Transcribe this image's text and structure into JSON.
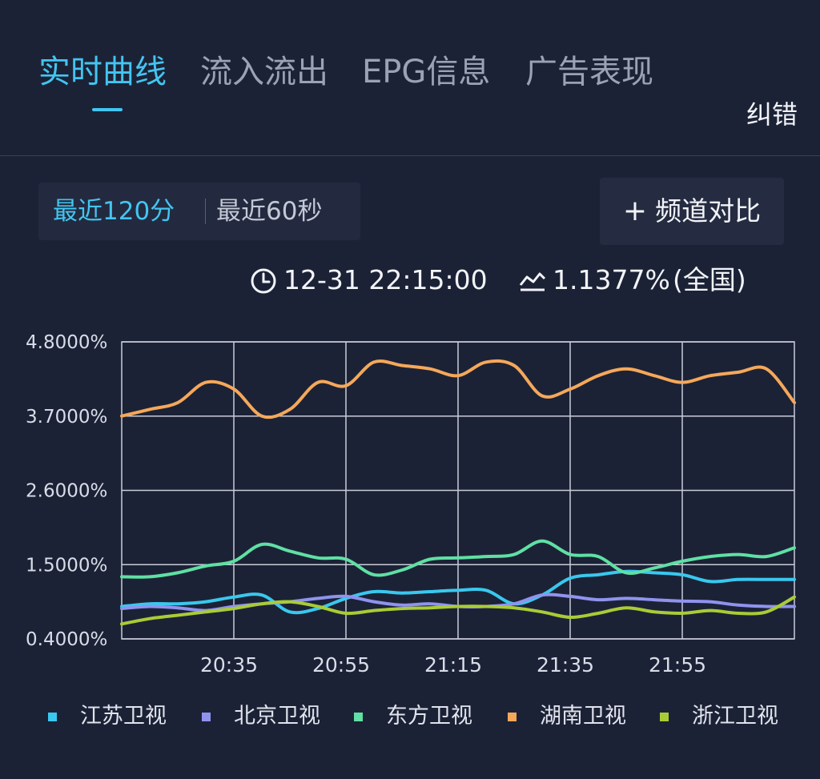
{
  "tabs": [
    {
      "label": "实时曲线"
    },
    {
      "label": "流入流出"
    },
    {
      "label": "EPG信息"
    },
    {
      "label": "广告表现"
    }
  ],
  "report_link": "纠错",
  "range": {
    "recent_120": "最近120分",
    "recent_60": "最近60秒"
  },
  "compare": {
    "label": "频道对比"
  },
  "info": {
    "time": "12-31 22:15:00",
    "rating": "1.1377%",
    "scope": "(全国)"
  },
  "colors": {
    "accent": "#43c5f0",
    "jiangsu": "#39c8ee",
    "beijing": "#8f93ee",
    "dongfang": "#5fe0a4",
    "hunan": "#f5a85a",
    "zhejiang": "#a9cc36"
  },
  "chart_data": {
    "type": "line",
    "x": [
      "20:15",
      "20:20",
      "20:25",
      "20:30",
      "20:35",
      "20:40",
      "20:45",
      "20:50",
      "20:55",
      "21:00",
      "21:05",
      "21:10",
      "21:15",
      "21:20",
      "21:25",
      "21:30",
      "21:35",
      "21:40",
      "21:45",
      "21:50",
      "21:55",
      "22:00",
      "22:05",
      "22:10",
      "22:15"
    ],
    "xticks": [
      "20:35",
      "20:55",
      "21:15",
      "21:35",
      "21:55"
    ],
    "yticks": [
      "4.8000%",
      "3.7000%",
      "2.6000%",
      "1.5000%",
      "0.4000%"
    ],
    "ylim": [
      0.4,
      4.8
    ],
    "grid": true,
    "legend_position": "bottom",
    "series": [
      {
        "name": "江苏卫视",
        "color": "#39c8ee",
        "values": [
          0.88,
          0.92,
          0.92,
          0.95,
          1.02,
          1.05,
          0.8,
          0.85,
          1.0,
          1.1,
          1.08,
          1.1,
          1.12,
          1.12,
          0.92,
          1.05,
          1.3,
          1.35,
          1.4,
          1.38,
          1.35,
          1.25,
          1.28,
          1.28,
          1.28
        ]
      },
      {
        "name": "北京卫视",
        "color": "#8f93ee",
        "values": [
          0.85,
          0.88,
          0.86,
          0.82,
          0.88,
          0.92,
          0.95,
          1.0,
          1.03,
          0.95,
          0.9,
          0.92,
          0.88,
          0.88,
          0.92,
          1.05,
          1.03,
          0.98,
          1.0,
          0.98,
          0.96,
          0.95,
          0.9,
          0.88,
          0.88
        ]
      },
      {
        "name": "东方卫视",
        "color": "#5fe0a4",
        "values": [
          1.32,
          1.32,
          1.38,
          1.48,
          1.55,
          1.8,
          1.7,
          1.6,
          1.58,
          1.35,
          1.42,
          1.58,
          1.6,
          1.62,
          1.65,
          1.85,
          1.65,
          1.62,
          1.38,
          1.45,
          1.55,
          1.62,
          1.65,
          1.62,
          1.75
        ]
      },
      {
        "name": "湖南卫视",
        "color": "#f5a85a",
        "values": [
          3.7,
          3.8,
          3.9,
          4.2,
          4.1,
          3.7,
          3.8,
          4.2,
          4.15,
          4.5,
          4.45,
          4.4,
          4.3,
          4.5,
          4.45,
          4.0,
          4.1,
          4.3,
          4.4,
          4.3,
          4.2,
          4.3,
          4.35,
          4.4,
          3.9
        ]
      },
      {
        "name": "浙江卫视",
        "color": "#a9cc36",
        "values": [
          0.62,
          0.7,
          0.75,
          0.8,
          0.85,
          0.92,
          0.95,
          0.88,
          0.78,
          0.82,
          0.85,
          0.86,
          0.88,
          0.88,
          0.86,
          0.8,
          0.72,
          0.78,
          0.86,
          0.8,
          0.78,
          0.82,
          0.78,
          0.8,
          1.02
        ]
      }
    ]
  }
}
